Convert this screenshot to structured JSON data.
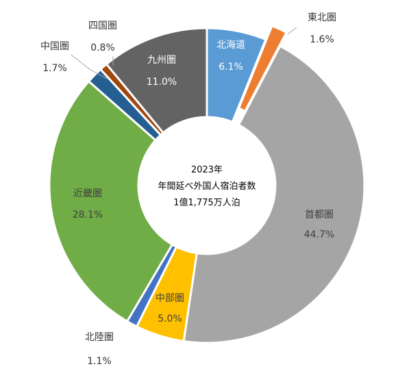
{
  "chart_data": {
    "type": "pie",
    "donut": true,
    "categories": [
      "北海道",
      "東北圏",
      "首都圏",
      "中部圏",
      "北陸圏",
      "近畿圏",
      "中国圏",
      "四国圏",
      "九州圏"
    ],
    "values": [
      6.1,
      1.6,
      44.7,
      5.0,
      1.1,
      28.1,
      1.7,
      0.8,
      11.0
    ],
    "value_labels": [
      "6.1%",
      "1.6%",
      "44.7%",
      "5.0%",
      "1.1%",
      "28.1%",
      "1.7%",
      "0.8%",
      "11.0%"
    ],
    "colors": [
      "#5b9bd5",
      "#ed7d31",
      "#a5a5a5",
      "#ffc000",
      "#4472c4",
      "#70ad47",
      "#255e91",
      "#9e480e",
      "#636363"
    ],
    "exploded": [
      "東北圏"
    ],
    "center_text": [
      "2023年",
      "年間延べ外国人宿泊者数",
      "1億1,775万人泊"
    ],
    "legend": "none"
  }
}
